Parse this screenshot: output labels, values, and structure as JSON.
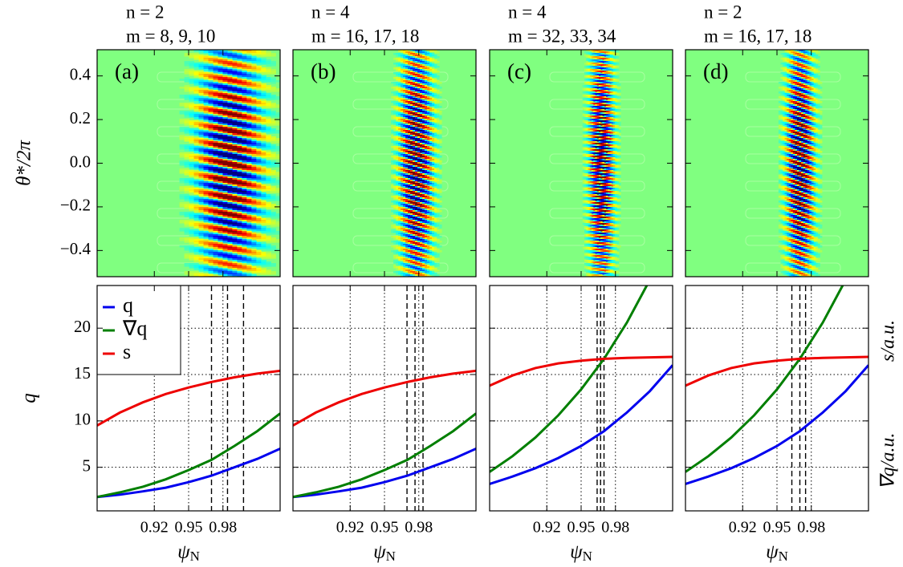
{
  "chart_data": [
    {
      "type": "heatmap",
      "title": [
        "n = 2",
        "m = 8, 9, 10"
      ],
      "panel_label": "(a)",
      "ylabel": "θ*/2π",
      "xlim": [
        0.87,
        1.03
      ],
      "ylim": [
        -0.52,
        0.52
      ],
      "xticks": [
        0.92,
        0.95,
        0.98
      ],
      "yticks": [
        {
          "value": -0.4,
          "label": "−0.4"
        },
        {
          "value": -0.2,
          "label": "−0.2"
        },
        {
          "value": 0,
          "label": "0.0"
        },
        0.2,
        0.4
      ],
      "ytick_labels": true
    },
    {
      "type": "heatmap",
      "title": [
        "n = 4",
        "m = 16, 17, 18"
      ],
      "panel_label": "(b)",
      "xlim": [
        0.87,
        1.03
      ],
      "ylim": [
        -0.52,
        0.52
      ],
      "xticks": [
        0.92,
        0.95,
        0.98
      ],
      "yticks": [
        -0.4,
        -0.2,
        0,
        0.2,
        0.4
      ],
      "ytick_labels": false
    },
    {
      "type": "heatmap",
      "title": [
        "n = 4",
        "m = 32, 33, 34"
      ],
      "panel_label": "(c)",
      "xlim": [
        0.87,
        1.03
      ],
      "ylim": [
        -0.52,
        0.52
      ],
      "xticks": [
        0.92,
        0.95,
        0.98
      ],
      "yticks": [
        -0.4,
        -0.2,
        0,
        0.2,
        0.4
      ],
      "ytick_labels": false
    },
    {
      "type": "heatmap",
      "title": [
        "n = 2",
        "m = 16, 17, 18"
      ],
      "panel_label": "(d)",
      "xlim": [
        0.87,
        1.03
      ],
      "ylim": [
        -0.52,
        0.52
      ],
      "xticks": [
        0.92,
        0.95,
        0.98
      ],
      "yticks": [
        -0.4,
        -0.2,
        0,
        0.2,
        0.4
      ],
      "ytick_labels": false
    },
    {
      "type": "line",
      "xlabel": {
        "base": "ψ",
        "sub": "N"
      },
      "ylabel": "q",
      "x": [
        0.87,
        0.89,
        0.91,
        0.93,
        0.95,
        0.97,
        0.99,
        1.01,
        1.03
      ],
      "series": [
        {
          "name": "q",
          "color": "#0000ee",
          "values": [
            1.8,
            2.05,
            2.4,
            2.8,
            3.4,
            4.1,
            5.0,
            5.9,
            7.0
          ]
        },
        {
          "name": "∇q",
          "color": "#007f00",
          "values": [
            1.8,
            2.3,
            2.9,
            3.7,
            4.7,
            5.8,
            7.3,
            8.9,
            10.8
          ]
        },
        {
          "name": "s",
          "color": "#ee0000",
          "values": [
            9.5,
            10.9,
            12.0,
            12.9,
            13.6,
            14.2,
            14.7,
            15.1,
            15.4
          ]
        }
      ],
      "resonances": [
        0.97,
        0.984,
        0.998
      ],
      "xlim": [
        0.87,
        1.03
      ],
      "ylim": [
        0.3,
        24.6
      ],
      "xticks": [
        0.92,
        0.95,
        0.98
      ],
      "yticks": [
        5,
        10,
        15,
        20
      ],
      "grid": true,
      "legend": "upper left",
      "ytick_labels": true
    },
    {
      "type": "line",
      "xlabel": {
        "base": "ψ",
        "sub": "N"
      },
      "x": [
        0.87,
        0.89,
        0.91,
        0.93,
        0.95,
        0.97,
        0.99,
        1.01,
        1.03
      ],
      "series": [
        {
          "name": "q",
          "color": "#0000ee",
          "values": [
            1.8,
            2.05,
            2.4,
            2.8,
            3.4,
            4.1,
            5.0,
            5.9,
            7.0
          ]
        },
        {
          "name": "∇q",
          "color": "#007f00",
          "values": [
            1.8,
            2.3,
            2.9,
            3.7,
            4.7,
            5.8,
            7.3,
            8.9,
            10.8
          ]
        },
        {
          "name": "s",
          "color": "#ee0000",
          "values": [
            9.5,
            10.9,
            12.0,
            12.9,
            13.6,
            14.2,
            14.7,
            15.1,
            15.4
          ]
        }
      ],
      "resonances": [
        0.9697,
        0.9767,
        0.9837
      ],
      "xlim": [
        0.87,
        1.03
      ],
      "ylim": [
        0.3,
        24.6
      ],
      "xticks": [
        0.92,
        0.95,
        0.98
      ],
      "yticks": [
        5,
        10,
        15,
        20
      ],
      "grid": true,
      "ytick_labels": false
    },
    {
      "type": "line",
      "xlabel": {
        "base": "ψ",
        "sub": "N"
      },
      "x": [
        0.87,
        0.89,
        0.91,
        0.93,
        0.95,
        0.97,
        0.99,
        1.01,
        1.03
      ],
      "series": [
        {
          "name": "q",
          "color": "#0000ee",
          "values": [
            3.2,
            4.0,
            4.9,
            6.0,
            7.3,
            8.9,
            10.9,
            13.2,
            16.0
          ]
        },
        {
          "name": "∇q",
          "color": "#007f00",
          "values": [
            4.5,
            6.2,
            8.2,
            10.6,
            13.4,
            16.7,
            20.6,
            25.2,
            30.0
          ]
        },
        {
          "name": "s",
          "color": "#ee0000",
          "values": [
            13.8,
            14.9,
            15.7,
            16.2,
            16.5,
            16.7,
            16.8,
            16.85,
            16.9
          ]
        }
      ],
      "resonances": [
        0.964,
        0.967,
        0.97
      ],
      "xlim": [
        0.87,
        1.03
      ],
      "ylim": [
        0.3,
        24.6
      ],
      "xticks": [
        0.92,
        0.95,
        0.98
      ],
      "yticks": [
        5,
        10,
        15,
        20
      ],
      "grid": true,
      "ytick_labels": false
    },
    {
      "type": "line",
      "xlabel": {
        "base": "ψ",
        "sub": "N"
      },
      "x": [
        0.87,
        0.89,
        0.91,
        0.93,
        0.95,
        0.97,
        0.99,
        1.01,
        1.03
      ],
      "series": [
        {
          "name": "q",
          "color": "#0000ee",
          "values": [
            3.2,
            4.0,
            4.9,
            6.0,
            7.3,
            8.9,
            10.9,
            13.2,
            16.0
          ]
        },
        {
          "name": "∇q",
          "color": "#007f00",
          "values": [
            4.5,
            6.2,
            8.2,
            10.6,
            13.4,
            16.7,
            20.6,
            25.2,
            30.0
          ]
        },
        {
          "name": "s",
          "color": "#ee0000",
          "values": [
            13.8,
            14.9,
            15.7,
            16.2,
            16.5,
            16.7,
            16.8,
            16.85,
            16.9
          ]
        }
      ],
      "resonances": [
        0.963,
        0.97,
        0.975
      ],
      "xlim": [
        0.87,
        1.03
      ],
      "ylim": [
        0.3,
        24.6
      ],
      "xticks": [
        0.92,
        0.95,
        0.98
      ],
      "yticks": [
        5,
        10,
        15,
        20
      ],
      "grid": true,
      "ytick_labels": false,
      "right_labels": [
        "s/a.u.",
        "∇q/a.u."
      ]
    }
  ]
}
